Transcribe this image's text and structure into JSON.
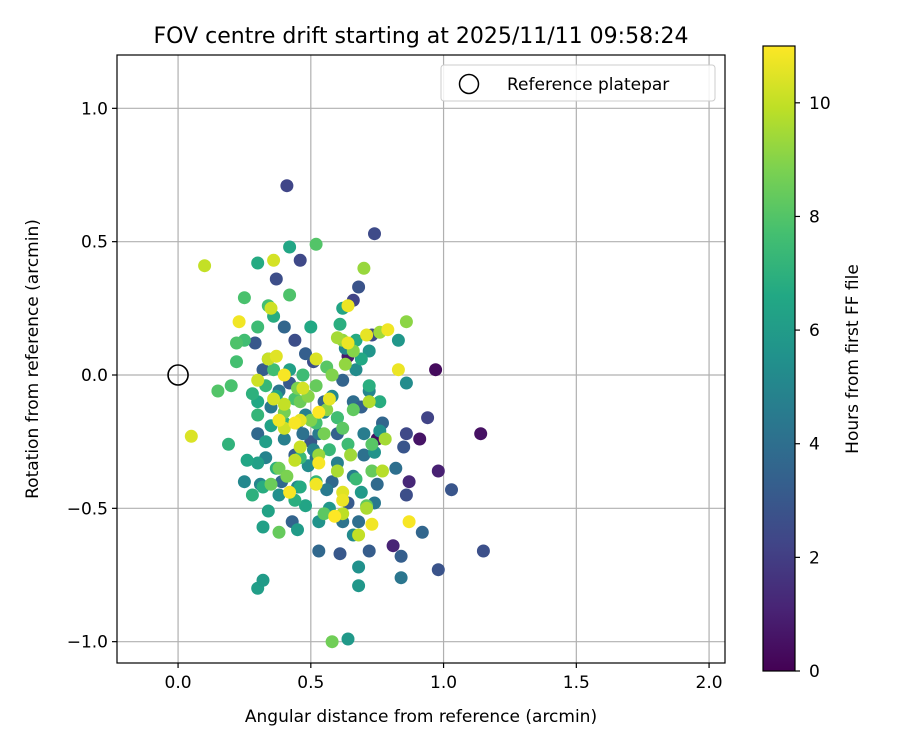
{
  "chart_data": {
    "type": "scatter",
    "title": "FOV centre drift starting at 2025/11/11 09:58:24",
    "xlabel": "Angular distance from reference (arcmin)",
    "ylabel": "Rotation from reference (arcmin)",
    "xlim": [
      -0.23,
      2.06
    ],
    "ylim": [
      -1.08,
      1.2
    ],
    "x_ticks": [
      0.0,
      0.5,
      1.0,
      1.5,
      2.0
    ],
    "x_tick_labels": [
      "0.0",
      "0.5",
      "1.0",
      "1.5",
      "2.0"
    ],
    "y_ticks": [
      -1.0,
      -0.5,
      0.0,
      0.5,
      1.0
    ],
    "y_tick_labels": [
      "−1.0",
      "−0.5",
      "0.0",
      "0.5",
      "1.0"
    ],
    "grid": true,
    "legend": {
      "position": "top-right",
      "entries": [
        "Reference platepar"
      ]
    },
    "reference_point": {
      "x": 0.0,
      "y": 0.0
    },
    "colorbar": {
      "label": "Hours from first FF file",
      "range": [
        0,
        11
      ],
      "ticks": [
        0,
        2,
        4,
        6,
        8,
        10
      ],
      "tick_labels": [
        "0",
        "2",
        "4",
        "6",
        "8",
        "10"
      ],
      "colormap": "viridis"
    },
    "series": [
      {
        "name": "FOV centre drift",
        "points": [
          [
            0.97,
            0.02,
            0.3
          ],
          [
            0.91,
            -0.24,
            0.6
          ],
          [
            1.14,
            -0.22,
            0.5
          ],
          [
            0.98,
            -0.36,
            1.0
          ],
          [
            0.87,
            -0.4,
            1.2
          ],
          [
            0.81,
            -0.64,
            1.1
          ],
          [
            0.64,
            0.07,
            0.8
          ],
          [
            0.75,
            -0.24,
            0.4
          ],
          [
            0.41,
            0.71,
            2.3
          ],
          [
            0.74,
            0.53,
            2.5
          ],
          [
            0.46,
            0.43,
            2.4
          ],
          [
            0.37,
            0.36,
            2.6
          ],
          [
            0.66,
            0.28,
            2.2
          ],
          [
            0.68,
            0.33,
            2.8
          ],
          [
            0.44,
            0.13,
            2.6
          ],
          [
            0.94,
            -0.16,
            2.2
          ],
          [
            1.03,
            -0.43,
            2.9
          ],
          [
            1.15,
            -0.66,
            2.7
          ],
          [
            0.98,
            -0.73,
            2.8
          ],
          [
            0.86,
            -0.22,
            2.4
          ],
          [
            0.85,
            -0.27,
            2.9
          ],
          [
            0.86,
            -0.45,
            2.6
          ],
          [
            0.73,
            0.15,
            2.5
          ],
          [
            0.51,
            0.05,
            2.7
          ],
          [
            0.29,
            0.12,
            3.0
          ],
          [
            0.32,
            0.02,
            3.2
          ],
          [
            0.42,
            -0.03,
            3.1
          ],
          [
            0.48,
            0.08,
            3.3
          ],
          [
            0.62,
            -0.02,
            3.5
          ],
          [
            0.55,
            -0.1,
            3.6
          ],
          [
            0.6,
            -0.22,
            3.4
          ],
          [
            0.5,
            -0.25,
            3.0
          ],
          [
            0.44,
            -0.3,
            3.3
          ],
          [
            0.64,
            -0.48,
            3.1
          ],
          [
            0.72,
            -0.66,
            3.2
          ],
          [
            0.84,
            -0.68,
            3.3
          ],
          [
            0.92,
            -0.59,
            3.6
          ],
          [
            0.61,
            -0.67,
            3.0
          ],
          [
            0.53,
            -0.66,
            3.7
          ],
          [
            0.43,
            -0.55,
            3.5
          ],
          [
            0.39,
            -0.4,
            3.8
          ],
          [
            0.3,
            -0.22,
            3.7
          ],
          [
            0.4,
            0.18,
            3.6
          ],
          [
            0.66,
            -0.1,
            3.9
          ],
          [
            0.58,
            -0.4,
            3.7
          ],
          [
            0.69,
            -0.12,
            3.4
          ],
          [
            0.75,
            -0.41,
            3.8
          ],
          [
            0.77,
            -0.18,
            3.6
          ],
          [
            0.82,
            -0.35,
            4.0
          ],
          [
            0.7,
            -0.3,
            4.1
          ],
          [
            0.45,
            -0.18,
            4.2
          ],
          [
            0.52,
            -0.31,
            4.0
          ],
          [
            0.35,
            -0.12,
            4.4
          ],
          [
            0.38,
            -0.06,
            4.3
          ],
          [
            0.47,
            -0.22,
            4.1
          ],
          [
            0.56,
            -0.43,
            4.5
          ],
          [
            0.62,
            -0.55,
            4.2
          ],
          [
            0.74,
            -0.48,
            4.4
          ],
          [
            0.84,
            -0.76,
            4.3
          ],
          [
            0.68,
            -0.55,
            4.0
          ],
          [
            0.66,
            -0.38,
            4.6
          ],
          [
            0.7,
            -0.22,
            4.6
          ],
          [
            0.6,
            -0.33,
            4.7
          ],
          [
            0.53,
            -0.22,
            4.5
          ],
          [
            0.48,
            -0.15,
            4.8
          ],
          [
            0.4,
            -0.24,
            4.7
          ],
          [
            0.33,
            -0.31,
            4.9
          ],
          [
            0.31,
            -0.41,
            5.0
          ],
          [
            0.25,
            -0.4,
            5.1
          ],
          [
            0.51,
            -0.28,
            4.9
          ],
          [
            0.58,
            -0.08,
            5.2
          ],
          [
            0.63,
            0.1,
            5.0
          ],
          [
            0.67,
            0.02,
            5.3
          ],
          [
            0.72,
            -0.06,
            5.0
          ],
          [
            0.6,
            -0.16,
            5.4
          ],
          [
            0.55,
            -0.14,
            5.1
          ],
          [
            0.49,
            -0.34,
            5.3
          ],
          [
            0.45,
            -0.42,
            5.0
          ],
          [
            0.38,
            -0.45,
            5.4
          ],
          [
            0.66,
            -0.6,
            5.2
          ],
          [
            0.86,
            -0.03,
            5.3
          ],
          [
            0.83,
            0.13,
            5.8
          ],
          [
            0.74,
            -0.29,
            5.6
          ],
          [
            0.69,
            -0.44,
            5.9
          ],
          [
            0.76,
            -0.21,
            5.5
          ],
          [
            0.72,
            0.09,
            5.7
          ],
          [
            0.53,
            -0.55,
            5.6
          ],
          [
            0.57,
            -0.5,
            5.8
          ],
          [
            0.68,
            -0.72,
            5.5
          ],
          [
            0.64,
            -0.99,
            5.9
          ],
          [
            0.68,
            -0.79,
            5.8
          ],
          [
            0.3,
            -0.8,
            6.1
          ],
          [
            0.32,
            -0.77,
            6.0
          ],
          [
            0.32,
            -0.57,
            6.2
          ],
          [
            0.34,
            -0.51,
            6.3
          ],
          [
            0.45,
            -0.58,
            6.0
          ],
          [
            0.48,
            -0.49,
            6.4
          ],
          [
            0.3,
            -0.33,
            6.2
          ],
          [
            0.26,
            -0.32,
            6.5
          ],
          [
            0.33,
            -0.25,
            6.1
          ],
          [
            0.35,
            -0.19,
            6.3
          ],
          [
            0.3,
            -0.1,
            6.6
          ],
          [
            0.37,
            -0.08,
            6.4
          ],
          [
            0.42,
            0.02,
            6.2
          ],
          [
            0.34,
            0.06,
            6.5
          ],
          [
            0.3,
            0.42,
            6.7
          ],
          [
            0.42,
            0.48,
            6.5
          ],
          [
            0.36,
            0.22,
            6.8
          ],
          [
            0.5,
            0.18,
            6.6
          ],
          [
            0.61,
            0.19,
            6.9
          ],
          [
            0.62,
            0.25,
            6.4
          ],
          [
            0.67,
            0.13,
            6.7
          ],
          [
            0.69,
            0.06,
            6.6
          ],
          [
            0.72,
            -0.04,
            6.9
          ],
          [
            0.76,
            -0.1,
            6.8
          ],
          [
            0.46,
            -0.42,
            6.7
          ],
          [
            0.44,
            -0.47,
            6.9
          ],
          [
            0.37,
            -0.35,
            7.0
          ],
          [
            0.32,
            -0.42,
            6.8
          ],
          [
            0.28,
            -0.45,
            7.0
          ],
          [
            0.19,
            -0.26,
            7.1
          ],
          [
            0.3,
            -0.15,
            7.2
          ],
          [
            0.28,
            -0.07,
            7.0
          ],
          [
            0.33,
            -0.04,
            7.3
          ],
          [
            0.4,
            -0.18,
            7.1
          ],
          [
            0.46,
            -0.31,
            7.4
          ],
          [
            0.52,
            -0.4,
            7.2
          ],
          [
            0.57,
            -0.28,
            7.3
          ],
          [
            0.64,
            -0.26,
            7.5
          ],
          [
            0.67,
            -0.39,
            7.4
          ],
          [
            0.6,
            -0.16,
            7.6
          ],
          [
            0.52,
            -0.18,
            7.7
          ],
          [
            0.47,
            0.0,
            7.5
          ],
          [
            0.44,
            -0.09,
            7.8
          ],
          [
            0.36,
            0.02,
            7.6
          ],
          [
            0.3,
            0.18,
            7.5
          ],
          [
            0.34,
            0.26,
            7.7
          ],
          [
            0.25,
            0.29,
            7.8
          ],
          [
            0.25,
            0.13,
            7.6
          ],
          [
            0.22,
            0.12,
            7.9
          ],
          [
            0.22,
            0.05,
            7.7
          ],
          [
            0.15,
            -0.06,
            8.0
          ],
          [
            0.2,
            -0.04,
            7.8
          ],
          [
            0.42,
            0.3,
            7.9
          ],
          [
            0.52,
            0.49,
            8.0
          ],
          [
            0.56,
            0.03,
            8.1
          ],
          [
            0.62,
            -0.2,
            8.2
          ],
          [
            0.66,
            -0.13,
            8.3
          ],
          [
            0.73,
            -0.26,
            8.1
          ],
          [
            0.73,
            -0.36,
            8.4
          ],
          [
            0.71,
            -0.49,
            8.3
          ],
          [
            0.55,
            -0.52,
            8.2
          ],
          [
            0.35,
            -0.41,
            8.5
          ],
          [
            0.38,
            -0.59,
            8.4
          ],
          [
            0.58,
            -1.0,
            8.6
          ],
          [
            0.52,
            -0.04,
            8.4
          ],
          [
            0.46,
            -0.1,
            8.5
          ],
          [
            0.4,
            -0.14,
            8.7
          ],
          [
            0.38,
            -0.35,
            8.6
          ],
          [
            0.41,
            -0.38,
            8.8
          ],
          [
            0.55,
            -0.22,
            8.7
          ],
          [
            0.5,
            -0.17,
            8.9
          ],
          [
            0.45,
            -0.05,
            8.8
          ],
          [
            0.49,
            -0.08,
            9.0
          ],
          [
            0.56,
            -0.13,
            9.1
          ],
          [
            0.58,
            0.0,
            8.9
          ],
          [
            0.63,
            0.04,
            9.2
          ],
          [
            0.66,
            0.09,
            9.0
          ],
          [
            0.7,
            0.4,
            9.3
          ],
          [
            0.86,
            0.2,
            9.1
          ],
          [
            0.76,
            0.16,
            9.4
          ],
          [
            0.62,
            0.13,
            9.2
          ],
          [
            0.6,
            0.14,
            9.5
          ],
          [
            0.53,
            -0.3,
            9.3
          ],
          [
            0.6,
            -0.36,
            9.6
          ],
          [
            0.65,
            -0.3,
            9.4
          ],
          [
            0.72,
            -0.1,
            9.7
          ],
          [
            0.78,
            -0.24,
            9.5
          ],
          [
            0.77,
            -0.36,
            9.8
          ],
          [
            0.71,
            -0.5,
            9.6
          ],
          [
            0.62,
            -0.52,
            9.9
          ],
          [
            0.68,
            -0.6,
            10.0
          ],
          [
            0.44,
            -0.32,
            10.0
          ],
          [
            0.46,
            -0.27,
            10.1
          ],
          [
            0.4,
            -0.2,
            10.2
          ],
          [
            0.4,
            -0.11,
            10.0
          ],
          [
            0.36,
            -0.09,
            10.3
          ],
          [
            0.34,
            0.06,
            10.1
          ],
          [
            0.35,
            0.25,
            10.2
          ],
          [
            0.1,
            0.41,
            10.0
          ],
          [
            0.36,
            0.43,
            10.3
          ],
          [
            0.05,
            -0.23,
            10.4
          ],
          [
            0.3,
            -0.02,
            10.2
          ],
          [
            0.37,
            0.07,
            10.5
          ],
          [
            0.47,
            -0.05,
            10.3
          ],
          [
            0.52,
            0.06,
            10.4
          ],
          [
            0.57,
            -0.09,
            10.6
          ],
          [
            0.62,
            -0.44,
            10.5
          ],
          [
            0.64,
            0.12,
            10.7
          ],
          [
            0.71,
            0.15,
            10.6
          ],
          [
            0.79,
            0.17,
            10.8
          ],
          [
            0.83,
            0.02,
            10.7
          ],
          [
            0.87,
            -0.55,
            10.9
          ],
          [
            0.73,
            -0.56,
            10.8
          ],
          [
            0.62,
            -0.47,
            10.7
          ],
          [
            0.53,
            -0.33,
            10.9
          ],
          [
            0.46,
            -0.17,
            10.6
          ],
          [
            0.38,
            -0.17,
            10.8
          ],
          [
            0.4,
            0.0,
            10.9
          ],
          [
            0.23,
            0.2,
            10.8
          ],
          [
            0.64,
            0.26,
            10.7
          ],
          [
            0.53,
            -0.14,
            11.0
          ],
          [
            0.42,
            -0.44,
            10.9
          ],
          [
            0.52,
            -0.41,
            10.8
          ],
          [
            0.59,
            -0.53,
            11.0
          ],
          [
            0.44,
            -0.18,
            10.9
          ]
        ]
      }
    ]
  }
}
